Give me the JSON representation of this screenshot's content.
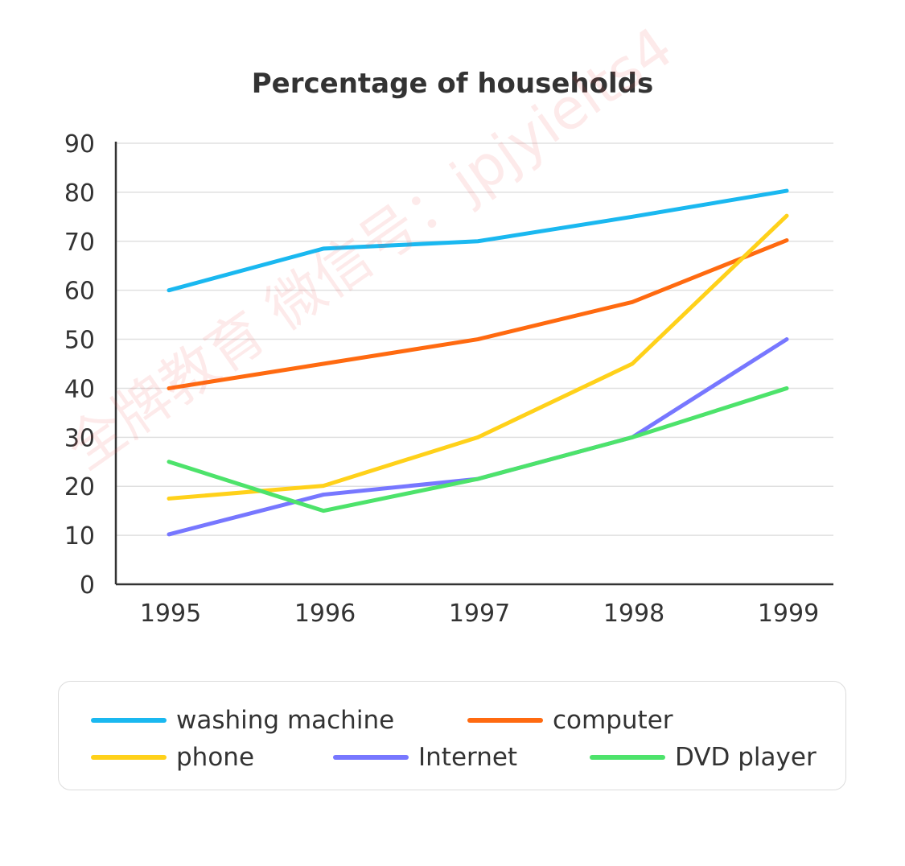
{
  "chart_data": {
    "type": "line",
    "title": "Percentage of households",
    "xlabel": "",
    "ylabel": "",
    "categories": [
      "1995",
      "1996",
      "1997",
      "1998",
      "1999"
    ],
    "ylim": [
      0,
      90
    ],
    "yticks": [
      0,
      10,
      20,
      30,
      40,
      50,
      60,
      70,
      80,
      90
    ],
    "grid": true,
    "legend_position": "bottom",
    "series": [
      {
        "name": "washing machine",
        "color": "#1ab8f0",
        "values": [
          60,
          68.5,
          70,
          75,
          80.3
        ]
      },
      {
        "name": "computer",
        "color": "#ff6a10",
        "values": [
          40,
          45,
          50,
          57.6,
          70.2
        ]
      },
      {
        "name": "phone",
        "color": "#ffd11a",
        "values": [
          17.5,
          20.1,
          30,
          45,
          75.2
        ]
      },
      {
        "name": "Internet",
        "color": "#7777ff",
        "values": [
          10.2,
          18.3,
          21.5,
          30,
          50
        ]
      },
      {
        "name": "DVD player",
        "color": "#4de36b",
        "values": [
          25,
          15,
          21.5,
          30,
          40
        ]
      }
    ]
  },
  "watermark": "全牌教育 微信号：jpjyielts4"
}
